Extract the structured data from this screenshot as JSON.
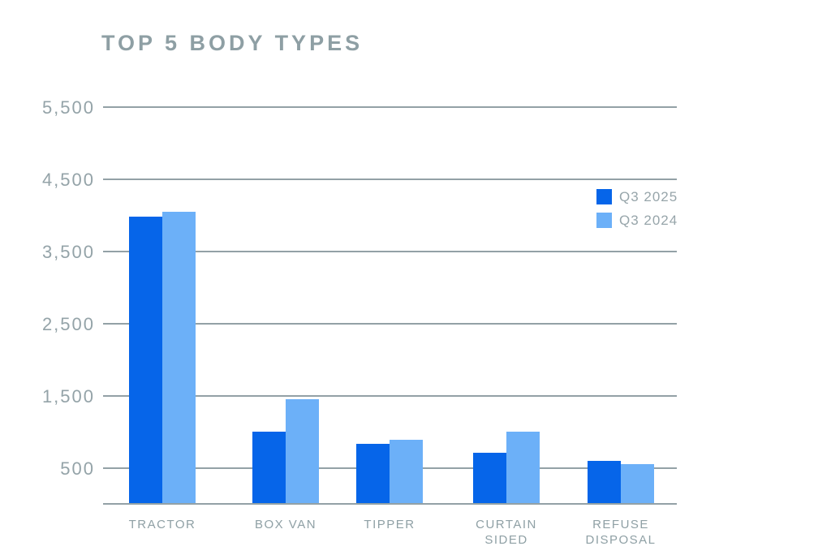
{
  "chart_data": {
    "type": "bar",
    "title": "TOP 5 BODY TYPES",
    "categories": [
      "TRACTOR",
      "BOX VAN",
      "TIPPER",
      "CURTAIN SIDED",
      "REFUSE DISPOSAL"
    ],
    "category_lines": [
      [
        "TRACTOR"
      ],
      [
        "BOX VAN"
      ],
      [
        "TIPPER"
      ],
      [
        "CURTAIN",
        "SIDED"
      ],
      [
        "REFUSE",
        "DISPOSAL"
      ]
    ],
    "series": [
      {
        "name": "Q3 2025",
        "color": "#0665e9",
        "values": [
          3980,
          1000,
          830,
          710,
          590
        ]
      },
      {
        "name": "Q3 2024",
        "color": "#6cb0f8",
        "values": [
          4050,
          1450,
          890,
          1000,
          550
        ]
      }
    ],
    "y_ticks": [
      500,
      1500,
      2500,
      3500,
      4500,
      5500
    ],
    "y_tick_labels": [
      "500",
      "1,500",
      "2,500",
      "3,500",
      "4,500",
      "5,500"
    ],
    "ylim": [
      0,
      5900
    ],
    "grid": true,
    "legend_position": "right",
    "xlabel": "",
    "ylabel": ""
  },
  "colors": {
    "gridline": "#93a1a6",
    "axis_text": "#94a3a8",
    "title_text": "#8e9fa4",
    "background": "#ffffff"
  }
}
